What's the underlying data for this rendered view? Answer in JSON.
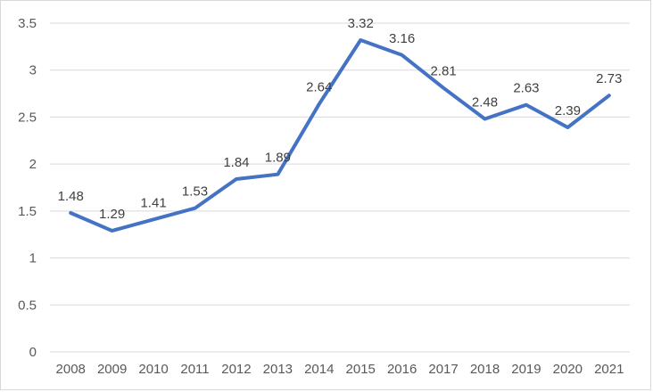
{
  "chart_data": {
    "type": "line",
    "title": "",
    "xlabel": "",
    "ylabel": "",
    "categories": [
      "2008",
      "2009",
      "2010",
      "2011",
      "2012",
      "2013",
      "2014",
      "2015",
      "2016",
      "2017",
      "2018",
      "2019",
      "2020",
      "2021"
    ],
    "series": [
      {
        "values": [
          1.48,
          1.29,
          1.41,
          1.53,
          1.84,
          1.89,
          2.64,
          3.32,
          3.16,
          2.81,
          2.48,
          2.63,
          2.39,
          2.73
        ],
        "color": "#4472c4",
        "data_labels": [
          "1.48",
          "1.29",
          "1.41",
          "1.53",
          "1.84",
          "1.89",
          "2.64",
          "3.32",
          "3.16",
          "2.81",
          "2.48",
          "2.63",
          "2.39",
          "2.73"
        ]
      }
    ],
    "ylim": [
      0,
      3.5
    ],
    "yticks": [
      0,
      0.5,
      1,
      1.5,
      2,
      2.5,
      3,
      3.5
    ],
    "ytick_labels": [
      "0",
      "0.5",
      "1",
      "1.5",
      "2",
      "2.5",
      "3",
      "3.5"
    ],
    "grid": true,
    "legend": "none",
    "gridline_color": "#d9d9d9"
  }
}
